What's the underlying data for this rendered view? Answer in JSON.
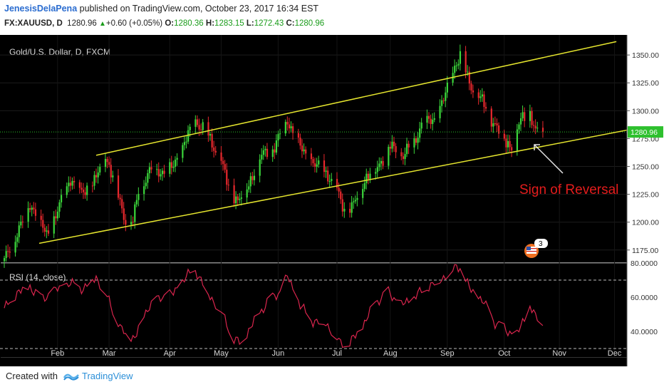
{
  "header": {
    "user": "JenesisDelaPena",
    "published": "published on TradingView.com, October 23, 2017 16:34 EST",
    "symbol": "FX:XAUUSD, D",
    "price": "1280.96",
    "change": "+0.60 (+0.05%)",
    "o_label": "O:",
    "o_value": "1280.36",
    "h_label": "H:",
    "h_value": "1283.15",
    "l_label": "L:",
    "l_value": "1272.43",
    "c_label": "C:",
    "c_value": "1280.96"
  },
  "footer": {
    "created_with": "Created with",
    "brand": "TradingView"
  },
  "colors": {
    "background": "#000000",
    "up": "#3bd63b",
    "down": "#e8282d",
    "channel": "#e5e52e",
    "rsi": "#d9254d",
    "price_line": "#2bbf2b",
    "annotation": "#e31c1c"
  },
  "chart_data": {
    "type": "candlestick",
    "title": "Gold/U.S. Dollar, D, FXCM",
    "current_price_label": "1280.96",
    "annotation": "Sign of Reversal",
    "x_tick_labels": [
      "Feb",
      "Mar",
      "Apr",
      "May",
      "Jun",
      "Jul",
      "Aug",
      "Sep",
      "Oct",
      "Nov",
      "Dec"
    ],
    "y_tick_labels": [
      "1350.00",
      "1325.00",
      "1300.00",
      "1275.00",
      "1250.00",
      "1225.00",
      "1200.00",
      "1175.00"
    ],
    "ylim": [
      1164,
      1368
    ],
    "close_path": [
      [
        "2017-01-03",
        1165
      ],
      [
        "2017-01-12",
        1198
      ],
      [
        "2017-01-17",
        1216
      ],
      [
        "2017-01-20",
        1209
      ],
      [
        "2017-01-26",
        1188
      ],
      [
        "2017-02-01",
        1210
      ],
      [
        "2017-02-08",
        1240
      ],
      [
        "2017-02-13",
        1225
      ],
      [
        "2017-02-21",
        1236
      ],
      [
        "2017-02-27",
        1260
      ],
      [
        "2017-03-01",
        1250
      ],
      [
        "2017-03-06",
        1225
      ],
      [
        "2017-03-09",
        1205
      ],
      [
        "2017-03-14",
        1200
      ],
      [
        "2017-03-17",
        1228
      ],
      [
        "2017-03-24",
        1248
      ],
      [
        "2017-03-30",
        1245
      ],
      [
        "2017-04-05",
        1250
      ],
      [
        "2017-04-12",
        1275
      ],
      [
        "2017-04-17",
        1290
      ],
      [
        "2017-04-21",
        1285
      ],
      [
        "2017-04-26",
        1270
      ],
      [
        "2017-05-01",
        1255
      ],
      [
        "2017-05-05",
        1230
      ],
      [
        "2017-05-10",
        1220
      ],
      [
        "2017-05-15",
        1230
      ],
      [
        "2017-05-22",
        1258
      ],
      [
        "2017-05-30",
        1268
      ],
      [
        "2017-06-06",
        1292
      ],
      [
        "2017-06-12",
        1270
      ],
      [
        "2017-06-20",
        1252
      ],
      [
        "2017-06-27",
        1245
      ],
      [
        "2017-07-03",
        1228
      ],
      [
        "2017-07-07",
        1212
      ],
      [
        "2017-07-11",
        1212
      ],
      [
        "2017-07-18",
        1238
      ],
      [
        "2017-07-25",
        1250
      ],
      [
        "2017-08-01",
        1268
      ],
      [
        "2017-08-08",
        1260
      ],
      [
        "2017-08-14",
        1272
      ],
      [
        "2017-08-18",
        1288
      ],
      [
        "2017-08-25",
        1292
      ],
      [
        "2017-08-30",
        1310
      ],
      [
        "2017-09-05",
        1340
      ],
      [
        "2017-09-08",
        1350
      ],
      [
        "2017-09-13",
        1325
      ],
      [
        "2017-09-20",
        1308
      ],
      [
        "2017-09-26",
        1290
      ],
      [
        "2017-10-03",
        1272
      ],
      [
        "2017-10-06",
        1268
      ],
      [
        "2017-10-11",
        1292
      ],
      [
        "2017-10-16",
        1298
      ],
      [
        "2017-10-19",
        1280
      ],
      [
        "2017-10-23",
        1281
      ]
    ],
    "channel": {
      "upper": [
        [
          "2017-02-22",
          1260
        ],
        [
          "2017-12-02",
          1362
        ]
      ],
      "lower": [
        [
          "2017-01-22",
          1181
        ],
        [
          "2017-12-31",
          1290
        ]
      ]
    },
    "rsi": {
      "title": "RSI (14, close)",
      "y_tick_labels": [
        "80.0000",
        "60.0000",
        "40.0000"
      ],
      "ylim": [
        25,
        80
      ],
      "levels": [
        70,
        30
      ],
      "series": [
        [
          "2017-01-03",
          53
        ],
        [
          "2017-01-10",
          63
        ],
        [
          "2017-01-17",
          66
        ],
        [
          "2017-01-24",
          59
        ],
        [
          "2017-01-31",
          64
        ],
        [
          "2017-02-08",
          68
        ],
        [
          "2017-02-15",
          65
        ],
        [
          "2017-02-22",
          72
        ],
        [
          "2017-03-01",
          58
        ],
        [
          "2017-03-08",
          40
        ],
        [
          "2017-03-15",
          36
        ],
        [
          "2017-03-22",
          54
        ],
        [
          "2017-03-29",
          60
        ],
        [
          "2017-04-05",
          62
        ],
        [
          "2017-04-12",
          72
        ],
        [
          "2017-04-17",
          76
        ],
        [
          "2017-04-24",
          62
        ],
        [
          "2017-05-01",
          52
        ],
        [
          "2017-05-08",
          35
        ],
        [
          "2017-05-12",
          33
        ],
        [
          "2017-05-19",
          46
        ],
        [
          "2017-05-26",
          57
        ],
        [
          "2017-06-02",
          63
        ],
        [
          "2017-06-06",
          72
        ],
        [
          "2017-06-13",
          55
        ],
        [
          "2017-06-20",
          46
        ],
        [
          "2017-06-27",
          45
        ],
        [
          "2017-07-05",
          33
        ],
        [
          "2017-07-10",
          33
        ],
        [
          "2017-07-17",
          43
        ],
        [
          "2017-07-24",
          57
        ],
        [
          "2017-07-31",
          63
        ],
        [
          "2017-08-07",
          55
        ],
        [
          "2017-08-14",
          60
        ],
        [
          "2017-08-21",
          66
        ],
        [
          "2017-08-28",
          70
        ],
        [
          "2017-09-05",
          77
        ],
        [
          "2017-09-08",
          78
        ],
        [
          "2017-09-13",
          65
        ],
        [
          "2017-09-20",
          58
        ],
        [
          "2017-09-27",
          45
        ],
        [
          "2017-10-04",
          40
        ],
        [
          "2017-10-09",
          38
        ],
        [
          "2017-10-16",
          55
        ],
        [
          "2017-10-19",
          48
        ],
        [
          "2017-10-23",
          46
        ]
      ]
    }
  }
}
